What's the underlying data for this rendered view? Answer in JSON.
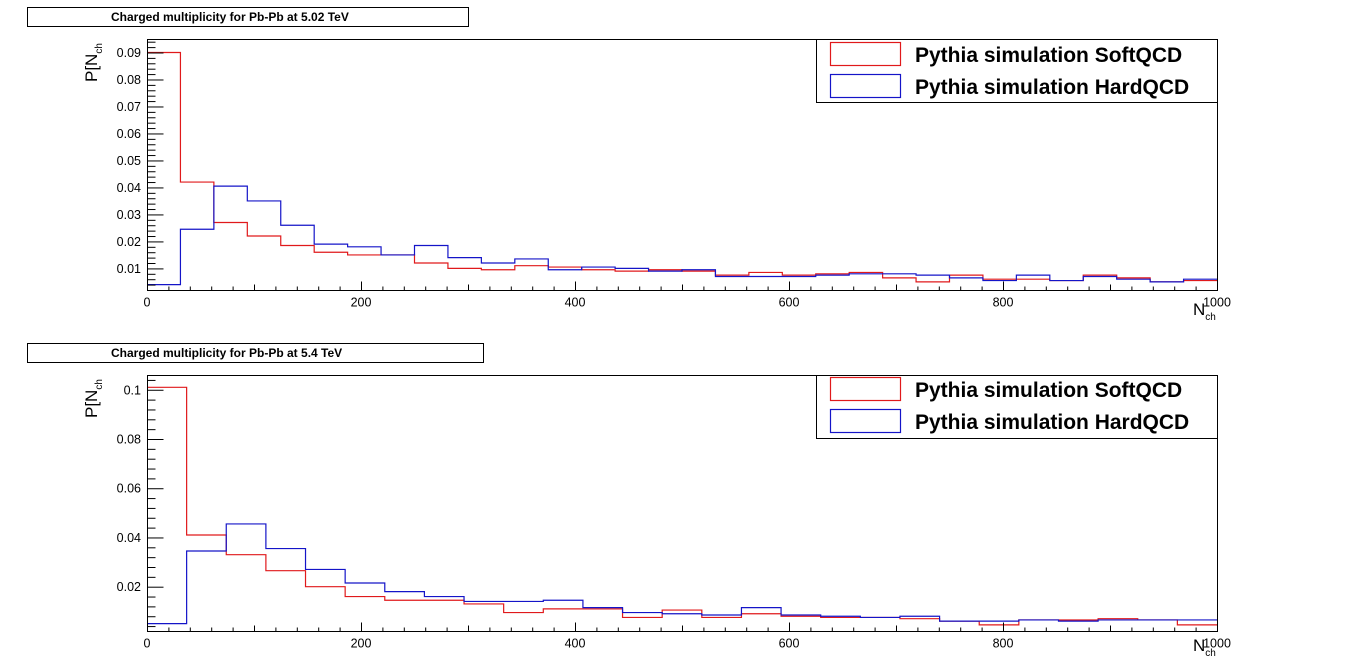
{
  "chart_data": [
    {
      "type": "histogram",
      "title": "Charged multiplicity for Pb-Pb at 5.02 TeV",
      "xlabel_main": "N",
      "xlabel_sub": "ch",
      "ylabel_main": "P[N",
      "ylabel_sub": "ch",
      "xlim": [
        0,
        1000
      ],
      "ylim": [
        0.002,
        0.095
      ],
      "xticks": [
        0,
        200,
        400,
        600,
        800,
        1000
      ],
      "xtick_labels": [
        "0",
        "200",
        "400",
        "600",
        "800",
        "1000"
      ],
      "yticks": [
        0.01,
        0.02,
        0.03,
        0.04,
        0.05,
        0.06,
        0.07,
        0.08,
        0.09
      ],
      "ytick_labels": [
        "0.01",
        "0.02",
        "0.03",
        "0.04",
        "0.05",
        "0.06",
        "0.07",
        "0.08",
        "0.09"
      ],
      "grid": false,
      "legend_position": "top-right",
      "bin_edges": [
        0,
        31.25,
        62.5,
        93.75,
        125,
        156.25,
        187.5,
        218.75,
        250,
        281.25,
        312.5,
        343.75,
        375,
        406.25,
        437.5,
        468.75,
        500,
        531.25,
        562.5,
        593.75,
        625,
        656.25,
        687.5,
        718.75,
        750,
        781.25,
        812.5,
        843.75,
        875,
        906.25,
        937.5,
        968.75,
        1000
      ],
      "series": [
        {
          "name": "Pythia simulation SoftQCD",
          "color": "#e0191b",
          "values": [
            0.09,
            0.042,
            0.027,
            0.022,
            0.0185,
            0.016,
            0.015,
            0.015,
            0.012,
            0.01,
            0.0095,
            0.011,
            0.0105,
            0.0095,
            0.009,
            0.0095,
            0.009,
            0.0075,
            0.0085,
            0.0075,
            0.008,
            0.0085,
            0.0065,
            0.005,
            0.0075,
            0.006,
            0.006,
            0.0055,
            0.0075,
            0.0065,
            0.005,
            0.0055
          ]
        },
        {
          "name": "Pythia simulation HardQCD",
          "color": "#1414c8",
          "values": [
            0.004,
            0.0245,
            0.0405,
            0.035,
            0.026,
            0.019,
            0.018,
            0.015,
            0.0185,
            0.014,
            0.012,
            0.0135,
            0.0095,
            0.0105,
            0.01,
            0.009,
            0.0095,
            0.007,
            0.007,
            0.007,
            0.0075,
            0.008,
            0.008,
            0.0075,
            0.0065,
            0.0055,
            0.0075,
            0.0055,
            0.007,
            0.006,
            0.005,
            0.006
          ]
        }
      ]
    },
    {
      "type": "histogram",
      "title": "Charged multiplicity for Pb-Pb at 5.4 TeV",
      "xlabel_main": "N",
      "xlabel_sub": "ch",
      "ylabel_main": "P[N",
      "ylabel_sub": "ch",
      "xlim": [
        0,
        1000
      ],
      "ylim": [
        0.002,
        0.106
      ],
      "xticks": [
        0,
        200,
        400,
        600,
        800,
        1000
      ],
      "xtick_labels": [
        "0",
        "200",
        "400",
        "600",
        "800",
        "1000"
      ],
      "yticks": [
        0.02,
        0.04,
        0.06,
        0.08,
        0.1
      ],
      "ytick_labels": [
        "0.02",
        "0.04",
        "0.06",
        "0.08",
        "0.1"
      ],
      "grid": false,
      "legend_position": "top-right",
      "bin_edges": [
        0,
        37.04,
        74.07,
        111.11,
        148.15,
        185.19,
        222.22,
        259.26,
        296.3,
        333.33,
        370.37,
        407.41,
        444.44,
        481.48,
        518.52,
        555.56,
        592.59,
        629.63,
        666.67,
        703.7,
        740.74,
        777.78,
        814.81,
        851.85,
        888.89,
        925.93,
        962.96,
        1000
      ],
      "series": [
        {
          "name": "Pythia simulation SoftQCD",
          "color": "#e0191b",
          "values": [
            0.101,
            0.041,
            0.033,
            0.0265,
            0.02,
            0.016,
            0.0145,
            0.0145,
            0.013,
            0.0095,
            0.011,
            0.011,
            0.0075,
            0.0105,
            0.0075,
            0.009,
            0.008,
            0.0075,
            0.0075,
            0.007,
            0.006,
            0.0045,
            0.0065,
            0.0065,
            0.007,
            0.0065,
            0.0045
          ]
        },
        {
          "name": "Pythia simulation HardQCD",
          "color": "#1414c8",
          "values": [
            0.005,
            0.0345,
            0.0455,
            0.0355,
            0.027,
            0.0215,
            0.018,
            0.016,
            0.014,
            0.014,
            0.0145,
            0.0115,
            0.0095,
            0.009,
            0.0085,
            0.0115,
            0.0085,
            0.008,
            0.0075,
            0.008,
            0.006,
            0.006,
            0.0065,
            0.006,
            0.0065,
            0.0065,
            0.0065
          ]
        }
      ]
    }
  ]
}
